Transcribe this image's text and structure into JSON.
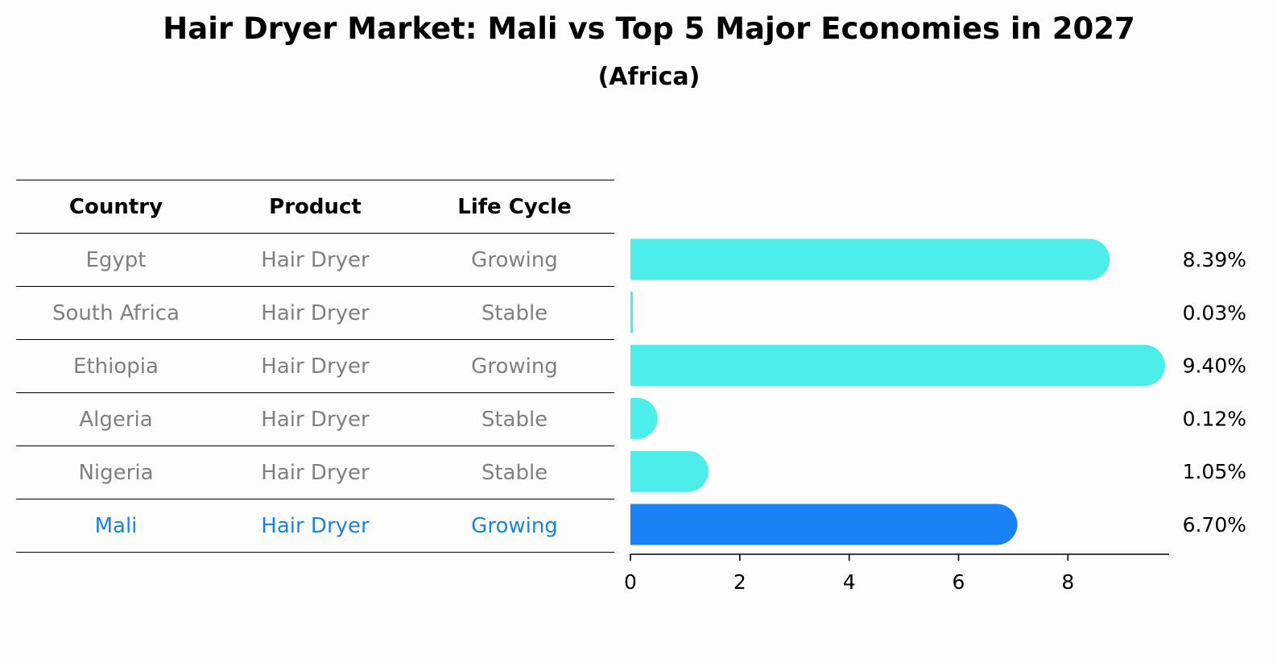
{
  "title": "Hair Dryer Market: Mali vs Top 5 Major Economies in 2027",
  "subtitle": "(Africa)",
  "table": {
    "headers": [
      "Country",
      "Product",
      "Life Cycle"
    ],
    "rows": [
      {
        "country": "Egypt",
        "product": "Hair Dryer",
        "life_cycle": "Growing"
      },
      {
        "country": "South Africa",
        "product": "Hair Dryer",
        "life_cycle": "Stable"
      },
      {
        "country": "Ethiopia",
        "product": "Hair Dryer",
        "life_cycle": "Growing"
      },
      {
        "country": "Algeria",
        "product": "Hair Dryer",
        "life_cycle": "Stable"
      },
      {
        "country": "Nigeria",
        "product": "Hair Dryer",
        "life_cycle": "Stable"
      },
      {
        "country": "Mali",
        "product": "Hair Dryer",
        "life_cycle": "Growing"
      }
    ],
    "highlight_row": 5
  },
  "colors": {
    "bar": "#4dede9",
    "highlight": "#1a82f5",
    "muted_text": "#808080",
    "highlight_text": "#1a82e6"
  },
  "chart_data": {
    "type": "bar",
    "orientation": "horizontal",
    "categories": [
      "Egypt",
      "South Africa",
      "Ethiopia",
      "Algeria",
      "Nigeria",
      "Mali"
    ],
    "values": [
      8.39,
      0.03,
      9.4,
      0.12,
      1.05,
      6.7
    ],
    "value_labels": [
      "8.39%",
      "0.03%",
      "9.40%",
      "0.12%",
      "1.05%",
      "6.70%"
    ],
    "highlight_category": "Mali",
    "xlim": [
      0,
      9.85
    ],
    "xticks": [
      0,
      2,
      4,
      6,
      8
    ],
    "xtick_labels": [
      "0",
      "2",
      "4",
      "6",
      "8"
    ],
    "grid": false,
    "bar_style": "rounded"
  }
}
